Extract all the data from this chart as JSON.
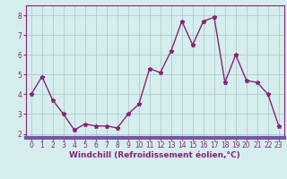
{
  "x": [
    0,
    1,
    2,
    3,
    4,
    5,
    6,
    7,
    8,
    9,
    10,
    11,
    12,
    13,
    14,
    15,
    16,
    17,
    18,
    19,
    20,
    21,
    22,
    23
  ],
  "y": [
    4.0,
    4.9,
    3.7,
    3.0,
    2.2,
    2.5,
    2.4,
    2.4,
    2.3,
    3.0,
    3.5,
    5.3,
    5.1,
    6.2,
    7.7,
    6.5,
    7.7,
    7.9,
    4.6,
    6.0,
    4.7,
    4.6,
    4.0,
    2.4
  ],
  "line_color": "#882277",
  "marker": "*",
  "marker_size": 3.5,
  "xlabel": "Windchill (Refroidissement éolien,°C)",
  "xlabel_fontsize": 6.5,
  "xlabel_color": "#882277",
  "ylabel_ticks": [
    2,
    3,
    4,
    5,
    6,
    7,
    8
  ],
  "xtick_labels": [
    "0",
    "1",
    "2",
    "3",
    "4",
    "5",
    "6",
    "7",
    "8",
    "9",
    "10",
    "11",
    "12",
    "13",
    "14",
    "15",
    "16",
    "17",
    "18",
    "19",
    "20",
    "21",
    "22",
    "23"
  ],
  "ylim": [
    1.8,
    8.5
  ],
  "xlim": [
    -0.5,
    23.5
  ],
  "bg_color": "#d5eeed",
  "grid_color": "#aacccc",
  "tick_color": "#882277",
  "tick_fontsize": 5.5,
  "line_width": 1.0,
  "spine_color": "#882277",
  "bottom_bar_color": "#7755aa"
}
